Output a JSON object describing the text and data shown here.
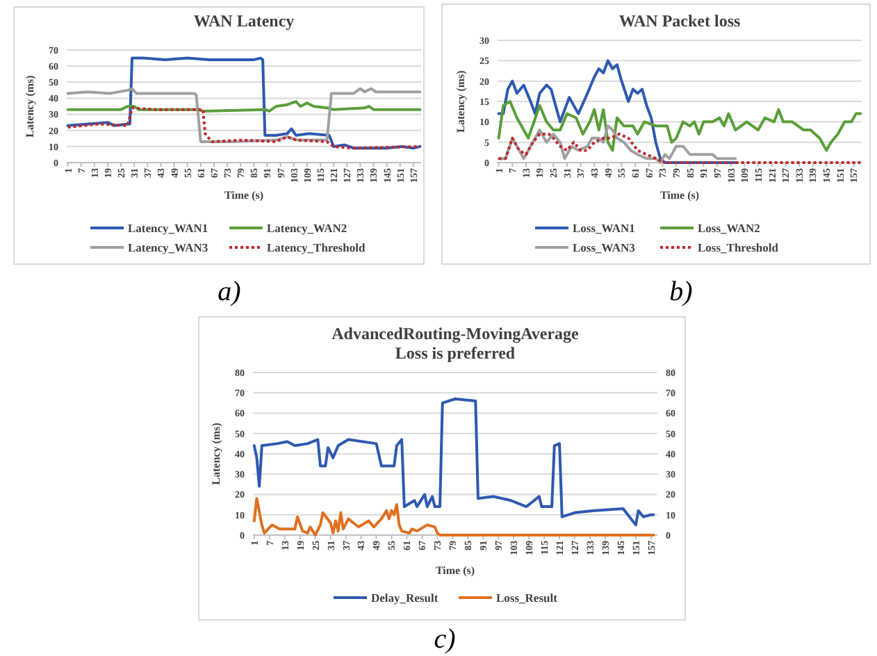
{
  "chart_data": [
    {
      "type": "line",
      "title": "WAN Latency",
      "xlabel": "Time (s)",
      "ylabel": "Latency (ms)",
      "xlim": [
        0.5,
        160.5
      ],
      "xticks": [
        1,
        7,
        13,
        19,
        25,
        31,
        37,
        43,
        49,
        55,
        61,
        67,
        73,
        79,
        85,
        91,
        97,
        103,
        109,
        115,
        121,
        127,
        133,
        139,
        145,
        151,
        157
      ],
      "ylim": [
        0,
        70
      ],
      "yticks": [
        0,
        10,
        20,
        30,
        40,
        50,
        60,
        70
      ],
      "grid": "y",
      "legend": "bottom",
      "annotations": [
        "a)"
      ],
      "series": [
        {
          "name": "Latency_WAN1",
          "color": "#2e59b0",
          "x": [
            1,
            10,
            19,
            22,
            28,
            29,
            30,
            35,
            45,
            55,
            65,
            75,
            85,
            88,
            89,
            90,
            95,
            100,
            102,
            104,
            110,
            119,
            121,
            126,
            130,
            145,
            152,
            157,
            160
          ],
          "values": [
            23,
            24,
            25,
            23,
            24,
            24,
            65,
            65,
            64,
            65,
            64,
            64,
            64,
            65,
            64,
            17,
            17,
            18,
            21,
            17,
            18,
            17,
            10,
            11,
            9,
            9,
            10,
            9,
            10
          ]
        },
        {
          "name": "Latency_WAN2",
          "color": "#5a9e3a",
          "x": [
            1,
            25,
            28,
            31,
            33,
            60,
            62,
            90,
            92,
            95,
            100,
            104,
            106,
            109,
            112,
            118,
            121,
            135,
            137,
            139,
            160
          ],
          "values": [
            33,
            33,
            35,
            35,
            33,
            33,
            32,
            33,
            32,
            35,
            36,
            38,
            35,
            37,
            35,
            34,
            33,
            34,
            35,
            33,
            33
          ]
        },
        {
          "name": "Latency_WAN3",
          "color": "#a0a0a0",
          "x": [
            1,
            10,
            20,
            28,
            30,
            32,
            45,
            58,
            59,
            61,
            75,
            95,
            100,
            105,
            118,
            120,
            130,
            133,
            135,
            138,
            140,
            160
          ],
          "values": [
            43,
            44,
            43,
            45,
            46,
            43,
            43,
            43,
            42,
            13,
            13,
            14,
            16,
            14,
            14,
            43,
            43,
            46,
            44,
            46,
            44,
            44
          ]
        },
        {
          "name": "Latency_Threshold",
          "color": "#c0282c",
          "line_style": "dotted",
          "x": [
            1,
            15,
            28,
            30,
            40,
            62,
            63,
            66,
            80,
            95,
            100,
            104,
            118,
            121,
            130,
            160
          ],
          "values": [
            22,
            24,
            23,
            34,
            33,
            33,
            18,
            13,
            14,
            13,
            16,
            14,
            13,
            10,
            9,
            10
          ]
        }
      ]
    },
    {
      "type": "line",
      "title": "WAN Packet loss",
      "xlabel": "Time (s)",
      "ylabel": "Latency (ms)",
      "xlim": [
        0.5,
        160.5
      ],
      "xticks": [
        1,
        7,
        13,
        19,
        25,
        31,
        37,
        43,
        49,
        55,
        61,
        67,
        73,
        79,
        85,
        91,
        97,
        103,
        109,
        115,
        121,
        127,
        133,
        139,
        145,
        151,
        157
      ],
      "ylim": [
        0,
        30
      ],
      "yticks": [
        0,
        5,
        10,
        15,
        20,
        25,
        30
      ],
      "grid": "y",
      "legend": "bottom",
      "annotations": [
        "b)"
      ],
      "series": [
        {
          "name": "Loss_WAN1",
          "color": "#2e59b0",
          "x": [
            1,
            3,
            5,
            7,
            9,
            12,
            15,
            17,
            19,
            22,
            24,
            26,
            28,
            32,
            34,
            36,
            40,
            43,
            45,
            47,
            49,
            51,
            53,
            55,
            58,
            60,
            62,
            64,
            66,
            68,
            70,
            72,
            74,
            105
          ],
          "values": [
            12,
            12,
            18,
            20,
            17,
            19,
            15,
            12,
            17,
            19,
            18,
            14,
            10,
            16,
            14,
            12,
            17,
            21,
            23,
            22,
            25,
            23,
            24,
            20,
            15,
            18,
            17,
            18,
            14,
            11,
            5,
            1,
            0,
            0
          ]
        },
        {
          "name": "Loss_WAN2",
          "color": "#5a9e3a",
          "x": [
            1,
            3,
            6,
            9,
            14,
            19,
            22,
            25,
            28,
            31,
            35,
            38,
            41,
            43,
            45,
            47,
            49,
            51,
            53,
            56,
            60,
            62,
            65,
            70,
            75,
            77,
            79,
            82,
            85,
            87,
            89,
            91,
            95,
            98,
            100,
            102,
            105,
            110,
            115,
            118,
            122,
            124,
            126,
            130,
            135,
            138,
            142,
            145,
            147,
            150,
            153,
            156,
            158,
            160
          ],
          "values": [
            6,
            14,
            15,
            11,
            6,
            14,
            10,
            8,
            8,
            12,
            11,
            7,
            10,
            13,
            8,
            13,
            5,
            3,
            11,
            9,
            9,
            7,
            10,
            9,
            9,
            5,
            6,
            10,
            9,
            10,
            7,
            10,
            10,
            11,
            9,
            12,
            8,
            10,
            8,
            11,
            10,
            13,
            10,
            10,
            8,
            8,
            6,
            3,
            5,
            7,
            10,
            10,
            12,
            12
          ]
        },
        {
          "name": "Loss_WAN3",
          "color": "#a0a0a0",
          "x": [
            1,
            4,
            7,
            10,
            12,
            16,
            19,
            22,
            25,
            28,
            30,
            33,
            36,
            40,
            42,
            45,
            47,
            49,
            51,
            53,
            56,
            59,
            62,
            66,
            70,
            72,
            74,
            76,
            79,
            82,
            85,
            95,
            97,
            105
          ],
          "values": [
            1,
            1,
            6,
            3,
            1,
            5,
            8,
            5,
            7,
            5,
            1,
            4,
            3,
            4,
            6,
            6,
            5,
            9,
            8,
            6,
            5,
            3,
            2,
            1,
            1,
            0,
            2,
            1,
            4,
            4,
            2,
            2,
            1,
            1
          ]
        },
        {
          "name": "Loss_Threshold",
          "color": "#c0282c",
          "line_style": "dotted",
          "x": [
            1,
            4,
            7,
            10,
            13,
            16,
            19,
            23,
            25,
            28,
            31,
            34,
            37,
            40,
            43,
            47,
            50,
            54,
            58,
            62,
            66,
            70,
            74,
            160
          ],
          "values": [
            1,
            1,
            6,
            3,
            2,
            5,
            7,
            7,
            6,
            4,
            3,
            5,
            3,
            3,
            5,
            6,
            6,
            7,
            6,
            3,
            2,
            1,
            0,
            0
          ]
        }
      ]
    },
    {
      "type": "line",
      "title": "AdvancedRouting-MovingAverage",
      "subtitle": "Loss is preferred",
      "xlabel": "Time (s)",
      "ylabel": "Latency (ms)",
      "xlim": [
        0.5,
        159.5
      ],
      "xticks": [
        1,
        7,
        13,
        19,
        25,
        31,
        37,
        43,
        49,
        55,
        61,
        67,
        73,
        79,
        85,
        91,
        97,
        103,
        109,
        115,
        121,
        127,
        133,
        139,
        145,
        151,
        157
      ],
      "ylim": [
        0,
        80
      ],
      "yticks": [
        0,
        10,
        20,
        30,
        40,
        50,
        60,
        70,
        80
      ],
      "y2lim": [
        0,
        80
      ],
      "y2ticks": [
        0,
        10,
        20,
        30,
        40,
        50,
        60,
        70,
        80
      ],
      "grid": "y",
      "legend": "bottom",
      "annotations": [
        "c)"
      ],
      "series": [
        {
          "name": "Delay_Result",
          "color": "#2e59b0",
          "x": [
            1,
            2,
            3,
            4,
            10,
            14,
            17,
            22,
            26,
            27,
            29,
            30,
            32,
            34,
            38,
            49,
            51,
            56,
            57,
            59,
            60,
            64,
            65,
            68,
            69,
            71,
            72,
            74,
            75,
            80,
            88,
            89,
            95,
            102,
            108,
            113,
            114,
            118,
            119,
            121,
            122,
            127,
            134,
            146,
            151,
            152,
            154,
            157,
            158
          ],
          "values": [
            44,
            38,
            24,
            44,
            45,
            46,
            44,
            45,
            47,
            34,
            34,
            43,
            38,
            44,
            47,
            45,
            34,
            34,
            44,
            47,
            14,
            17,
            14,
            20,
            14,
            19,
            14,
            14,
            65,
            67,
            66,
            18,
            19,
            17,
            14,
            19,
            14,
            14,
            44,
            45,
            9,
            11,
            12,
            13,
            5,
            12,
            9,
            10,
            10
          ]
        },
        {
          "name": "Loss_Result",
          "color": "#e07020",
          "x": [
            1,
            2,
            4,
            5,
            8,
            11,
            17,
            18,
            20,
            22,
            23,
            25,
            27,
            28,
            31,
            32,
            33,
            34,
            35,
            36,
            38,
            42,
            46,
            48,
            51,
            53,
            54,
            55,
            56,
            57,
            58,
            59,
            62,
            63,
            65,
            69,
            72,
            73,
            74,
            158
          ],
          "values": [
            7,
            18,
            5,
            1,
            5,
            3,
            3,
            9,
            2,
            1,
            4,
            0,
            5,
            11,
            6,
            1,
            7,
            2,
            11,
            3,
            8,
            4,
            7,
            4,
            8,
            12,
            8,
            12,
            10,
            15,
            5,
            2,
            1,
            3,
            2,
            5,
            4,
            1,
            0,
            0
          ]
        }
      ]
    }
  ]
}
